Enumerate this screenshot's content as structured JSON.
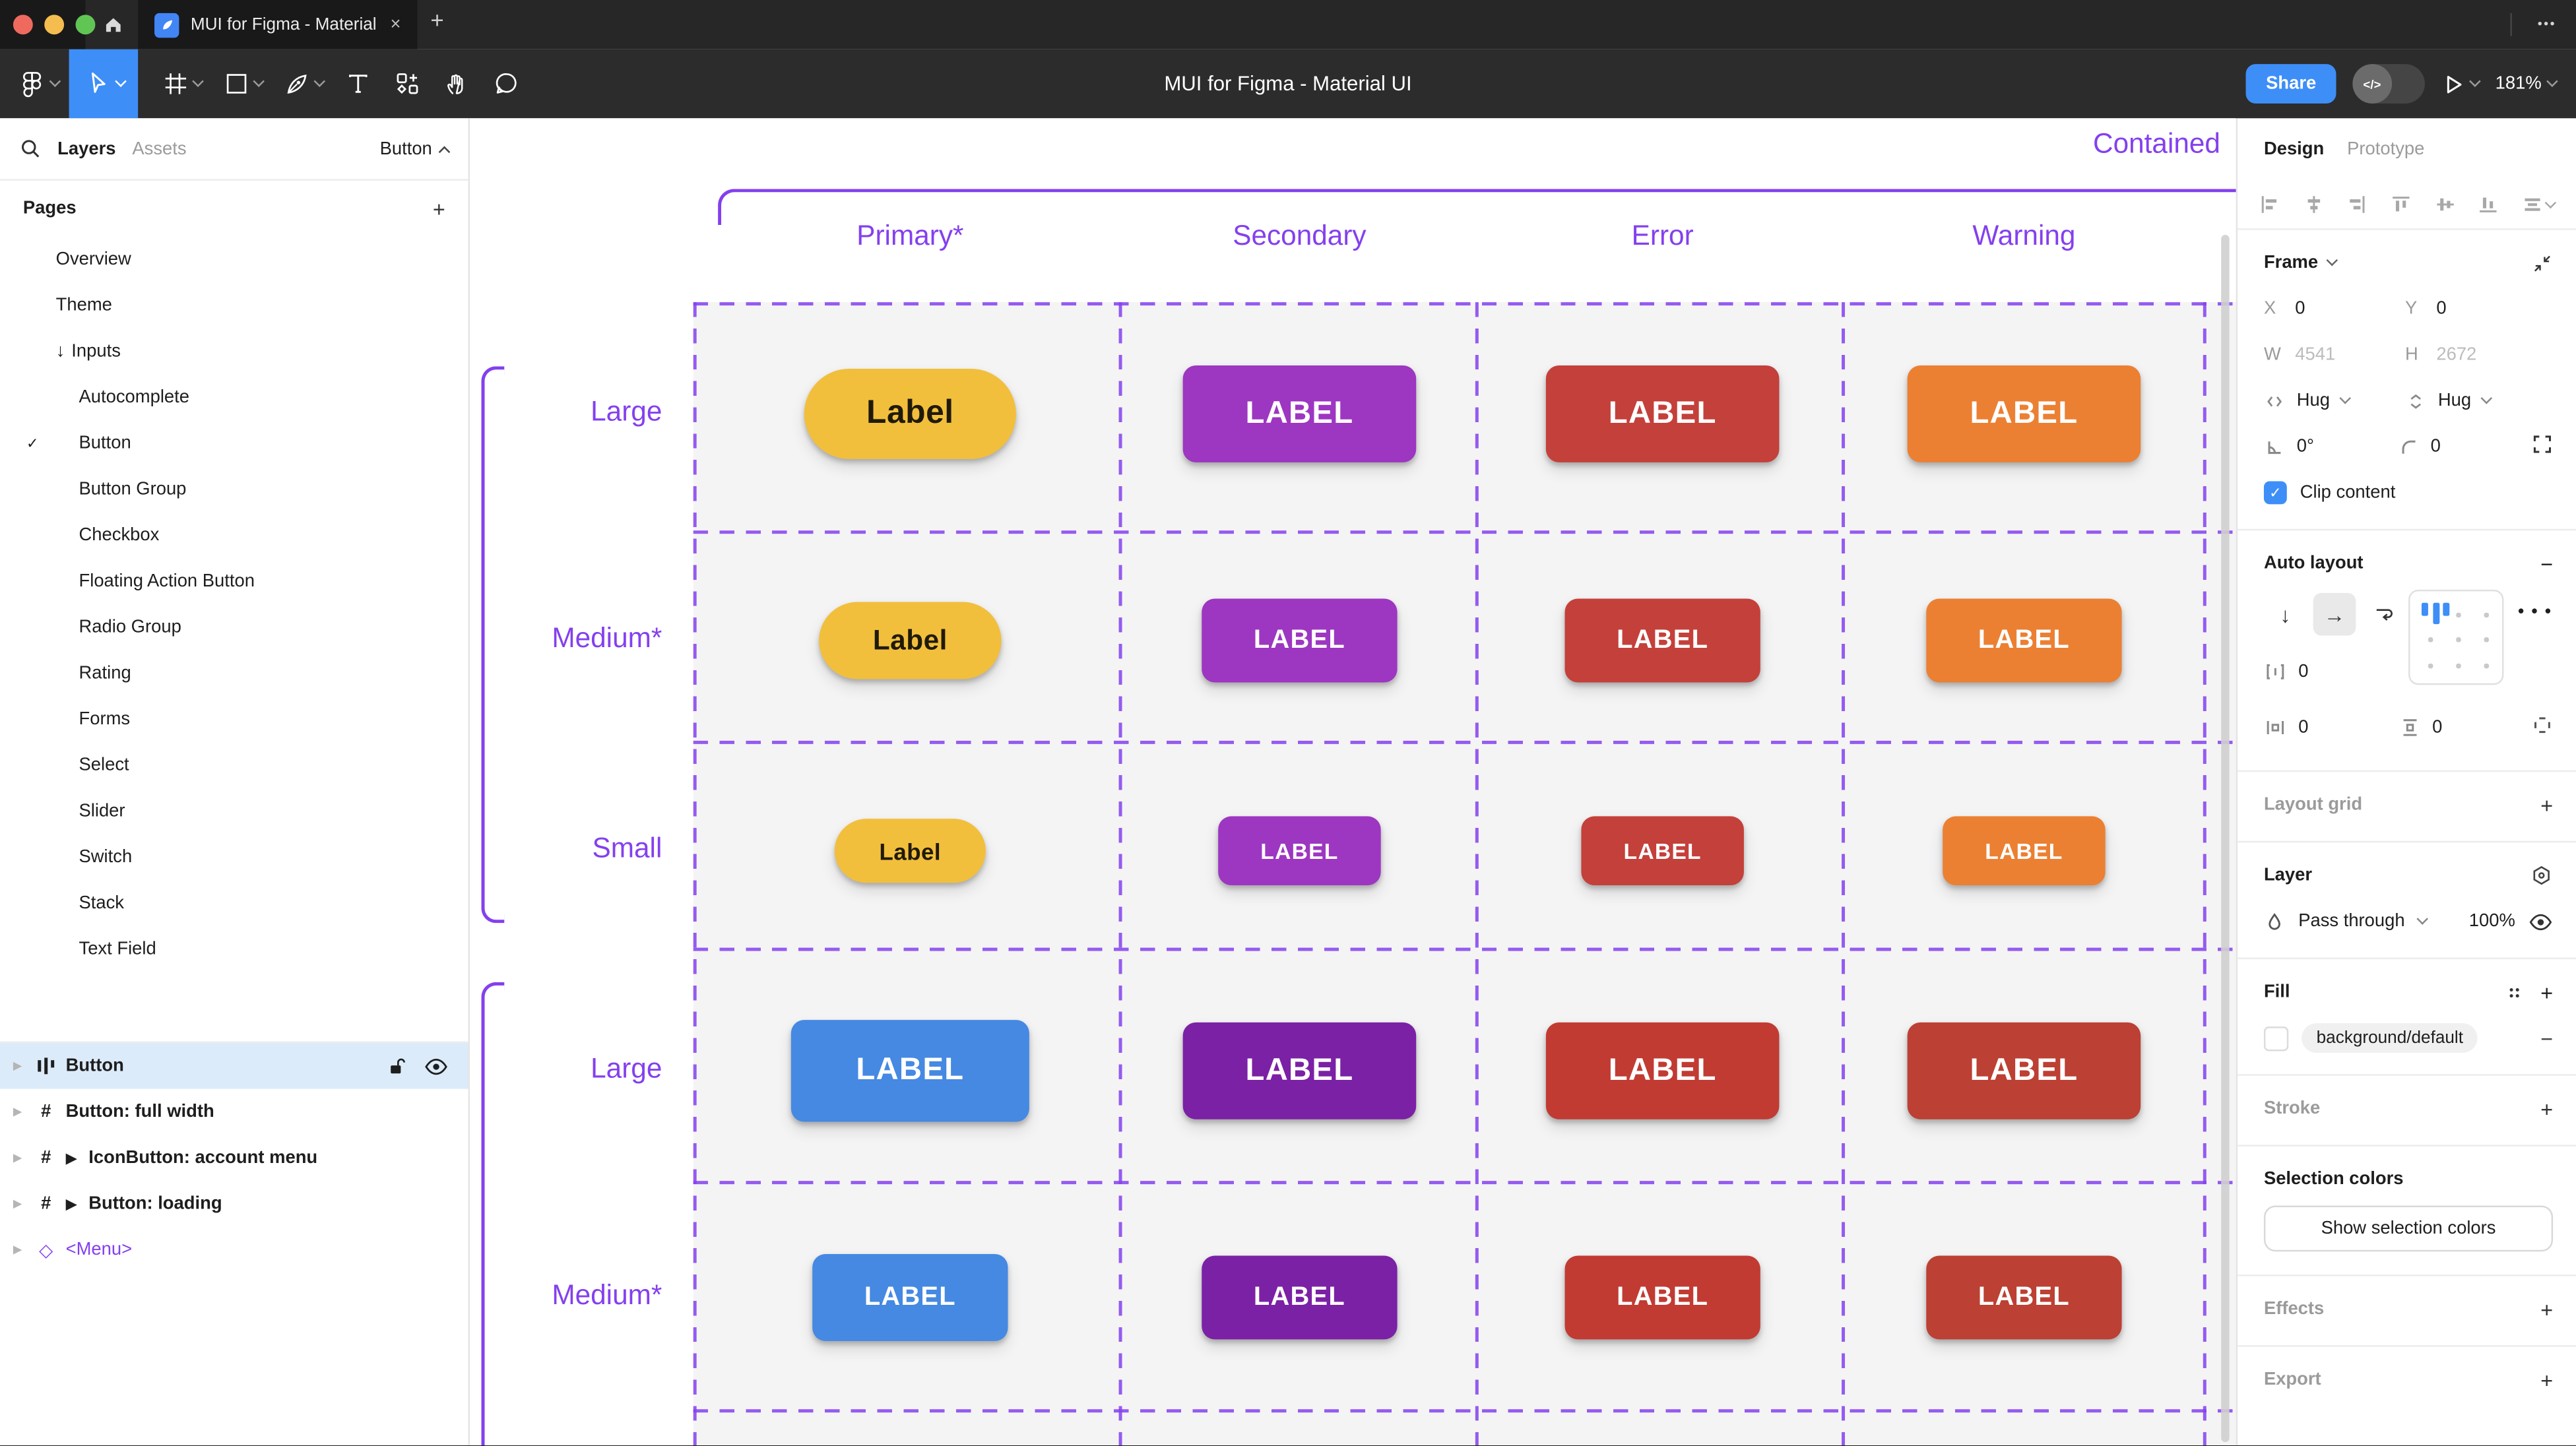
{
  "browser": {
    "tab_title": "MUI for Figma - Material UI",
    "close_tab": "×",
    "new_tab": "+",
    "overflow": "•••"
  },
  "toolbar": {
    "document_title": "MUI for Figma - Material UI",
    "share_label": "Share",
    "dev_toggle_glyph": "</>",
    "zoom_level": "181%"
  },
  "sidebar": {
    "tabs": {
      "layers": "Layers",
      "assets": "Assets"
    },
    "page_selector": "Button",
    "pages_header": "Pages",
    "add_page": "+",
    "pages": [
      {
        "label": "Overview",
        "indent": 1
      },
      {
        "label": "Theme",
        "indent": 1
      },
      {
        "label": "Inputs",
        "indent": 1,
        "prefix": "↓"
      },
      {
        "label": "Autocomplete",
        "indent": 2
      },
      {
        "label": "Button",
        "indent": 2,
        "checked": true
      },
      {
        "label": "Button Group",
        "indent": 2
      },
      {
        "label": "Checkbox",
        "indent": 2
      },
      {
        "label": "Floating Action Button",
        "indent": 2
      },
      {
        "label": "Radio Group",
        "indent": 2
      },
      {
        "label": "Rating",
        "indent": 2
      },
      {
        "label": "Forms",
        "indent": 2
      },
      {
        "label": "Select",
        "indent": 2
      },
      {
        "label": "Slider",
        "indent": 2
      },
      {
        "label": "Switch",
        "indent": 2
      },
      {
        "label": "Stack",
        "indent": 2
      },
      {
        "label": "Text Field",
        "indent": 2
      }
    ],
    "layers": [
      {
        "label": "Button",
        "icon": "auto-layout",
        "selected": true
      },
      {
        "label": "Button: full width",
        "icon": "frame"
      },
      {
        "label": "IconButton: account menu",
        "icon": "frame",
        "play": true
      },
      {
        "label": "Button: loading",
        "icon": "frame",
        "play": true
      },
      {
        "label": "<Menu>",
        "icon": "instance",
        "purple": true
      }
    ]
  },
  "canvas": {
    "frame_title": "Contained",
    "columns": [
      "Primary*",
      "Secondary",
      "Error",
      "Warning"
    ],
    "rows": [
      {
        "size_label": "Large",
        "size": "large",
        "set": "default"
      },
      {
        "size_label": "Medium*",
        "size": "medium",
        "set": "default"
      },
      {
        "size_label": "Small",
        "size": "small",
        "set": "default"
      },
      {
        "size_label": "Large",
        "size": "large",
        "set": "dark"
      },
      {
        "size_label": "Medium*",
        "size": "medium",
        "set": "dark"
      }
    ],
    "button_labels": {
      "primary_default": "Label",
      "uppercase": "LABEL"
    },
    "button_colors": {
      "primary": {
        "bg": "#F2BF3D",
        "fg": "#201A08"
      },
      "secondary": {
        "bg": "#9D36C1",
        "fg": "#FFFFFF"
      },
      "error": {
        "bg": "#C4403A",
        "fg": "#FFFFFF"
      },
      "warning": {
        "bg": "#EB8033",
        "fg": "#FFFFFF"
      },
      "primary_dark": {
        "bg": "#4589E2",
        "fg": "#FFFFFF"
      },
      "secondary_dark": {
        "bg": "#7B21A5",
        "fg": "#FFFFFF"
      },
      "error_dark": {
        "bg": "#C13B33",
        "fg": "#FFFFFF"
      },
      "warning_dark": {
        "bg": "#BC4033",
        "fg": "#FFFFFF"
      }
    },
    "accent": "#8440EE"
  },
  "inspector": {
    "tabs": {
      "design": "Design",
      "prototype": "Prototype"
    },
    "frame": {
      "title": "Frame",
      "x_label": "X",
      "x_value": "0",
      "y_label": "Y",
      "y_value": "0",
      "w_label": "W",
      "w_value": "4541",
      "h_label": "H",
      "h_value": "2672",
      "hug_h": "Hug",
      "hug_v": "Hug",
      "rotation_value": "0°",
      "radius_value": "0",
      "clip_label": "Clip content"
    },
    "auto_layout": {
      "title": "Auto layout",
      "gap_value": "0",
      "padding_h_value": "0",
      "padding_v_value": "0",
      "more": "•••"
    },
    "layout_grid_title": "Layout grid",
    "layer": {
      "title": "Layer",
      "blend_mode": "Pass through",
      "opacity": "100%"
    },
    "fill": {
      "title": "Fill",
      "style_name": "background/default"
    },
    "stroke_title": "Stroke",
    "selection_colors": {
      "title": "Selection colors",
      "show_button": "Show selection colors"
    },
    "effects_title": "Effects",
    "export_title": "Export"
  }
}
